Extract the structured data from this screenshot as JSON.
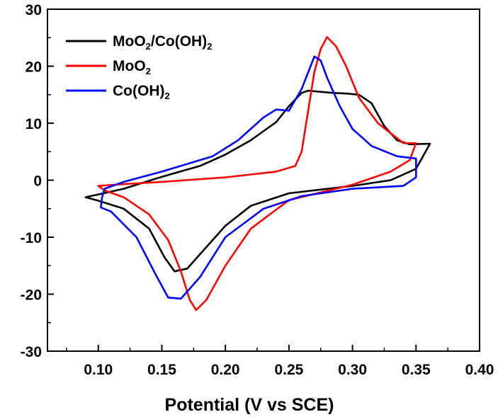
{
  "chart_data": {
    "type": "line",
    "title": "",
    "xlabel": "Potential (V vs SCE)",
    "ylabel": "",
    "xlim": [
      0.06,
      0.4
    ],
    "ylim": [
      -30,
      30
    ],
    "x_ticks": [
      "0.10",
      "0.15",
      "0.20",
      "0.25",
      "0.30",
      "0.35",
      "0.40"
    ],
    "y_ticks": [
      "-30",
      "-20",
      "-10",
      "0",
      "10",
      "20",
      "30"
    ],
    "grid": false,
    "legend_position": "top-left",
    "series": [
      {
        "name": "MoO2/Co(OH)2",
        "legend": {
          "base": "MoO",
          "sub1": "2",
          "mid": "/Co(OH)",
          "sub2": "2"
        },
        "color": "#000000",
        "points": [
          [
            0.361,
            6.4
          ],
          [
            0.345,
            6.3
          ],
          [
            0.335,
            7.0
          ],
          [
            0.325,
            9.5
          ],
          [
            0.315,
            13.5
          ],
          [
            0.305,
            15.0
          ],
          [
            0.295,
            15.2
          ],
          [
            0.285,
            15.3
          ],
          [
            0.275,
            15.5
          ],
          [
            0.265,
            15.7
          ],
          [
            0.26,
            15.3
          ],
          [
            0.25,
            13.0
          ],
          [
            0.24,
            10.2
          ],
          [
            0.22,
            7.0
          ],
          [
            0.2,
            4.5
          ],
          [
            0.18,
            2.5
          ],
          [
            0.15,
            0.6
          ],
          [
            0.12,
            -1.5
          ],
          [
            0.1,
            -2.5
          ],
          [
            0.09,
            -3.0
          ],
          [
            0.1,
            -3.6
          ],
          [
            0.12,
            -5.0
          ],
          [
            0.14,
            -8.5
          ],
          [
            0.152,
            -13.5
          ],
          [
            0.16,
            -16.0
          ],
          [
            0.17,
            -15.5
          ],
          [
            0.18,
            -13.0
          ],
          [
            0.2,
            -8.0
          ],
          [
            0.22,
            -4.5
          ],
          [
            0.25,
            -2.3
          ],
          [
            0.3,
            -1.0
          ],
          [
            0.33,
            0.0
          ],
          [
            0.35,
            2.0
          ],
          [
            0.361,
            6.4
          ]
        ]
      },
      {
        "name": "MoO2",
        "legend": {
          "base": "MoO",
          "sub1": "2"
        },
        "color": "#ff0000",
        "points": [
          [
            0.35,
            6.5
          ],
          [
            0.34,
            6.5
          ],
          [
            0.32,
            10.0
          ],
          [
            0.305,
            14.5
          ],
          [
            0.295,
            20.0
          ],
          [
            0.287,
            23.5
          ],
          [
            0.28,
            25.1
          ],
          [
            0.275,
            23.0
          ],
          [
            0.27,
            19.0
          ],
          [
            0.265,
            12.0
          ],
          [
            0.26,
            5.0
          ],
          [
            0.255,
            2.5
          ],
          [
            0.24,
            1.5
          ],
          [
            0.2,
            0.5
          ],
          [
            0.15,
            -0.3
          ],
          [
            0.12,
            -0.7
          ],
          [
            0.1,
            -1.0
          ],
          [
            0.105,
            -1.8
          ],
          [
            0.12,
            -3.0
          ],
          [
            0.14,
            -6.0
          ],
          [
            0.155,
            -10.5
          ],
          [
            0.165,
            -16.0
          ],
          [
            0.172,
            -21.0
          ],
          [
            0.177,
            -22.8
          ],
          [
            0.185,
            -21.0
          ],
          [
            0.2,
            -15.0
          ],
          [
            0.22,
            -8.5
          ],
          [
            0.25,
            -3.5
          ],
          [
            0.3,
            -0.8
          ],
          [
            0.33,
            1.5
          ],
          [
            0.345,
            3.5
          ],
          [
            0.35,
            6.5
          ]
        ]
      },
      {
        "name": "Co(OH)2",
        "legend": {
          "base": "Co(OH)",
          "sub1": "2"
        },
        "color": "#0000ff",
        "points": [
          [
            0.35,
            3.8
          ],
          [
            0.335,
            4.2
          ],
          [
            0.315,
            6.0
          ],
          [
            0.3,
            9.0
          ],
          [
            0.29,
            13.0
          ],
          [
            0.28,
            18.0
          ],
          [
            0.275,
            21.0
          ],
          [
            0.27,
            21.7
          ],
          [
            0.26,
            16.0
          ],
          [
            0.25,
            12.2
          ],
          [
            0.24,
            12.4
          ],
          [
            0.23,
            11.0
          ],
          [
            0.21,
            7.0
          ],
          [
            0.19,
            4.2
          ],
          [
            0.15,
            1.5
          ],
          [
            0.12,
            -0.3
          ],
          [
            0.105,
            -1.5
          ],
          [
            0.103,
            -3.0
          ],
          [
            0.102,
            -4.8
          ],
          [
            0.11,
            -5.5
          ],
          [
            0.13,
            -10.0
          ],
          [
            0.145,
            -16.5
          ],
          [
            0.155,
            -20.6
          ],
          [
            0.165,
            -20.8
          ],
          [
            0.18,
            -17.0
          ],
          [
            0.2,
            -10.0
          ],
          [
            0.23,
            -5.0
          ],
          [
            0.26,
            -2.8
          ],
          [
            0.3,
            -1.5
          ],
          [
            0.34,
            -1.0
          ],
          [
            0.35,
            0.5
          ],
          [
            0.35,
            3.8
          ]
        ]
      }
    ]
  }
}
